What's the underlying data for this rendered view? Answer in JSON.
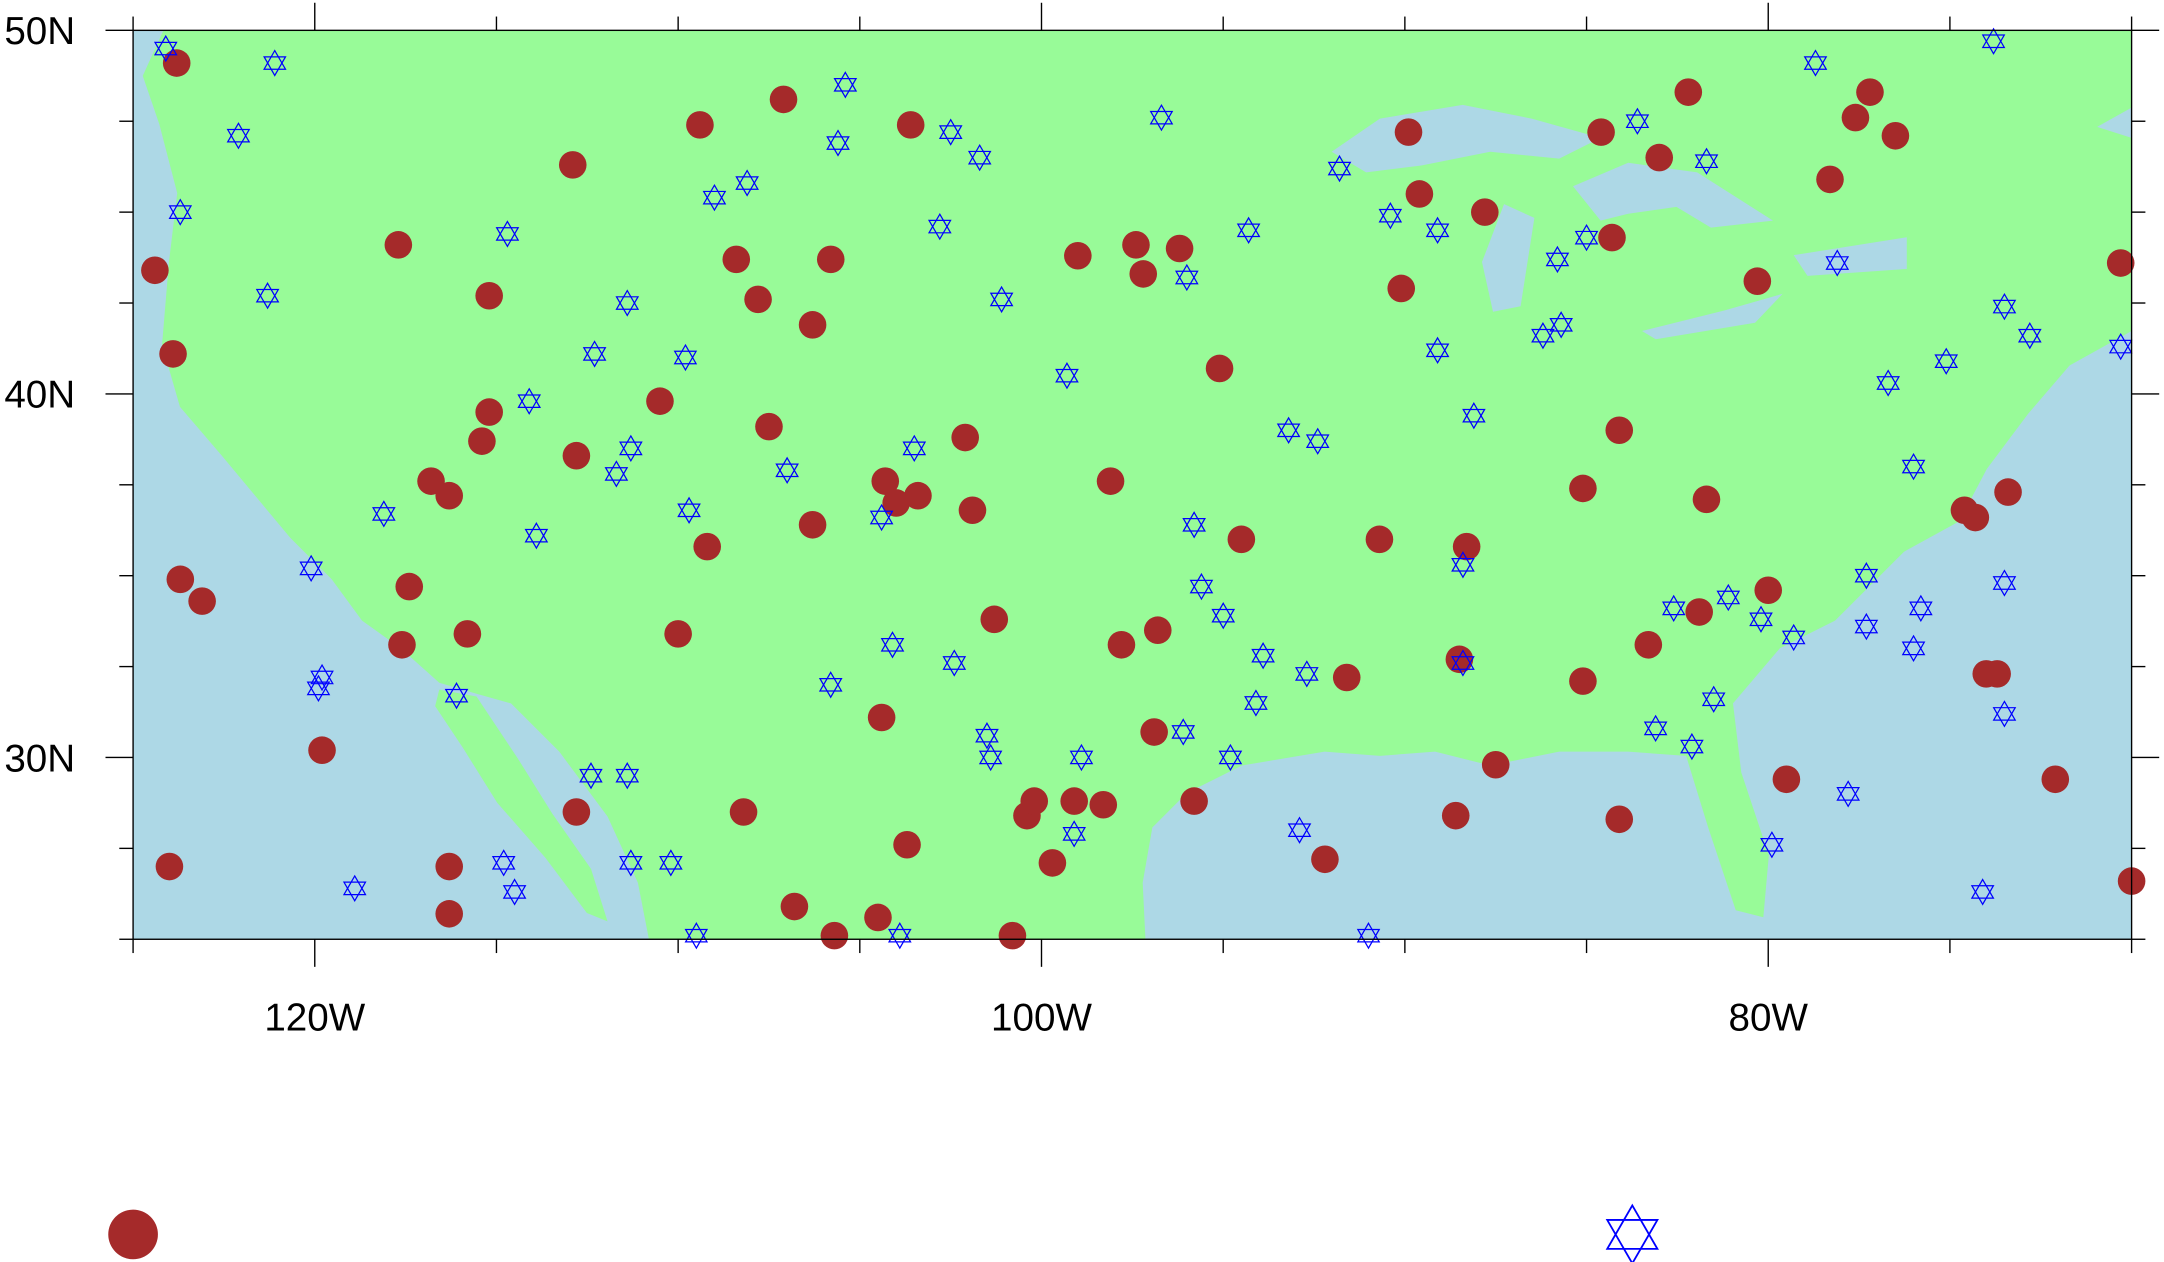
{
  "chart_data": {
    "type": "scatter",
    "projection": "cylindrical-equidistant",
    "xlim": [
      -125,
      -70
    ],
    "ylim": [
      25,
      50
    ],
    "x_ticks": [
      {
        "value": -120,
        "label": "120W"
      },
      {
        "value": -100,
        "label": "100W"
      },
      {
        "value": -80,
        "label": "80W"
      }
    ],
    "y_ticks": [
      {
        "value": 30,
        "label": "30N"
      },
      {
        "value": 40,
        "label": "40N"
      },
      {
        "value": 50,
        "label": "50N"
      }
    ],
    "colors": {
      "ocean": "#ADD8E6",
      "land": "#98FB98",
      "circle": "#A52A2A",
      "star": "#0000FF"
    },
    "series": [
      {
        "marker": "filled-circle",
        "color": "#A52A2A",
        "points": [
          [
            -123.8,
            49.1
          ],
          [
            -124.4,
            43.4
          ],
          [
            -123.9,
            41.1
          ],
          [
            -123.7,
            34.9
          ],
          [
            -123.1,
            34.3
          ],
          [
            -124.0,
            27.0
          ],
          [
            -119.8,
            30.2
          ],
          [
            -117.7,
            44.1
          ],
          [
            -115.2,
            42.7
          ],
          [
            -115.2,
            39.5
          ],
          [
            -115.4,
            38.7
          ],
          [
            -116.8,
            37.6
          ],
          [
            -116.3,
            37.2
          ],
          [
            -117.4,
            34.7
          ],
          [
            -117.6,
            33.1
          ],
          [
            -115.8,
            33.4
          ],
          [
            -116.3,
            27.0
          ],
          [
            -116.3,
            25.7
          ],
          [
            -112.9,
            46.3
          ],
          [
            -112.8,
            38.3
          ],
          [
            -112.8,
            28.5
          ],
          [
            -109.4,
            47.4
          ],
          [
            -110.5,
            39.8
          ],
          [
            -110.0,
            33.4
          ],
          [
            -109.2,
            35.8
          ],
          [
            -108.4,
            43.7
          ],
          [
            -107.8,
            42.6
          ],
          [
            -107.1,
            48.1
          ],
          [
            -107.5,
            39.1
          ],
          [
            -106.3,
            41.9
          ],
          [
            -105.8,
            43.7
          ],
          [
            -106.3,
            36.4
          ],
          [
            -108.2,
            28.5
          ],
          [
            -106.8,
            25.9
          ],
          [
            -105.7,
            25.1
          ],
          [
            -104.4,
            31.1
          ],
          [
            -104.3,
            37.6
          ],
          [
            -104.0,
            37.0
          ],
          [
            -103.4,
            37.2
          ],
          [
            -103.6,
            47.4
          ],
          [
            -102.1,
            38.8
          ],
          [
            -101.9,
            36.8
          ],
          [
            -101.3,
            33.8
          ],
          [
            -103.7,
            27.6
          ],
          [
            -104.5,
            25.6
          ],
          [
            -100.8,
            25.1
          ],
          [
            -100.4,
            28.4
          ],
          [
            -100.2,
            28.8
          ],
          [
            -99.7,
            27.1
          ],
          [
            -99.1,
            28.8
          ],
          [
            -98.3,
            28.7
          ],
          [
            -99.0,
            43.8
          ],
          [
            -97.4,
            44.1
          ],
          [
            -97.2,
            43.3
          ],
          [
            -96.2,
            44.0
          ],
          [
            -98.1,
            37.6
          ],
          [
            -97.8,
            33.1
          ],
          [
            -96.8,
            33.5
          ],
          [
            -96.9,
            30.7
          ],
          [
            -95.8,
            28.8
          ],
          [
            -95.1,
            40.7
          ],
          [
            -94.5,
            36.0
          ],
          [
            -91.6,
            32.2
          ],
          [
            -92.2,
            27.2
          ],
          [
            -90.7,
            36.0
          ],
          [
            -90.1,
            42.9
          ],
          [
            -89.9,
            47.2
          ],
          [
            -89.6,
            45.5
          ],
          [
            -87.8,
            45.0
          ],
          [
            -88.3,
            35.8
          ],
          [
            -88.5,
            32.7
          ],
          [
            -88.6,
            28.4
          ],
          [
            -87.5,
            29.8
          ],
          [
            -84.6,
            47.2
          ],
          [
            -84.3,
            44.3
          ],
          [
            -84.1,
            39.0
          ],
          [
            -85.1,
            37.4
          ],
          [
            -83.0,
            46.5
          ],
          [
            -82.2,
            48.3
          ],
          [
            -81.7,
            37.1
          ],
          [
            -81.9,
            34.0
          ],
          [
            -83.3,
            33.1
          ],
          [
            -85.1,
            32.1
          ],
          [
            -84.1,
            28.3
          ],
          [
            -80.3,
            43.1
          ],
          [
            -80.0,
            34.6
          ],
          [
            -79.5,
            29.4
          ],
          [
            -78.3,
            45.9
          ],
          [
            -77.6,
            47.6
          ],
          [
            -77.2,
            48.3
          ],
          [
            -76.5,
            47.1
          ],
          [
            -74.6,
            36.8
          ],
          [
            -74.3,
            36.6
          ],
          [
            -73.4,
            37.3
          ],
          [
            -74.0,
            32.3
          ],
          [
            -73.7,
            32.3
          ],
          [
            -72.1,
            29.4
          ],
          [
            -70.3,
            43.6
          ],
          [
            -70.0,
            26.6
          ]
        ]
      },
      {
        "marker": "hexagram",
        "color": "#0000FF",
        "points": [
          [
            -124.1,
            49.5
          ],
          [
            -121.1,
            49.1
          ],
          [
            -122.1,
            47.1
          ],
          [
            -123.7,
            45.0
          ],
          [
            -121.3,
            42.7
          ],
          [
            -120.1,
            35.2
          ],
          [
            -119.8,
            32.2
          ],
          [
            -119.9,
            31.9
          ],
          [
            -118.9,
            26.4
          ],
          [
            -118.1,
            36.7
          ],
          [
            -116.1,
            31.7
          ],
          [
            -114.7,
            44.4
          ],
          [
            -114.1,
            39.8
          ],
          [
            -113.9,
            36.1
          ],
          [
            -114.8,
            27.1
          ],
          [
            -114.5,
            26.3
          ],
          [
            -112.4,
            29.5
          ],
          [
            -111.4,
            29.5
          ],
          [
            -111.3,
            27.1
          ],
          [
            -110.2,
            27.1
          ],
          [
            -112.3,
            41.1
          ],
          [
            -111.4,
            42.5
          ],
          [
            -111.3,
            38.5
          ],
          [
            -111.7,
            37.8
          ],
          [
            -109.7,
            36.8
          ],
          [
            -109.8,
            41.0
          ],
          [
            -109.0,
            45.4
          ],
          [
            -108.1,
            45.8
          ],
          [
            -107.0,
            37.9
          ],
          [
            -105.4,
            48.5
          ],
          [
            -105.6,
            46.9
          ],
          [
            -105.8,
            32.0
          ],
          [
            -104.1,
            33.1
          ],
          [
            -104.4,
            36.6
          ],
          [
            -103.5,
            38.5
          ],
          [
            -103.9,
            25.1
          ],
          [
            -109.5,
            25.1
          ],
          [
            -102.5,
            47.2
          ],
          [
            -101.7,
            46.5
          ],
          [
            -102.8,
            44.6
          ],
          [
            -102.4,
            32.6
          ],
          [
            -101.1,
            42.6
          ],
          [
            -101.5,
            30.6
          ],
          [
            -101.4,
            30.0
          ],
          [
            -98.9,
            30.0
          ],
          [
            -99.1,
            27.9
          ],
          [
            -99.3,
            40.5
          ],
          [
            -96.7,
            47.6
          ],
          [
            -96.0,
            43.2
          ],
          [
            -95.8,
            36.4
          ],
          [
            -95.6,
            34.7
          ],
          [
            -96.1,
            30.7
          ],
          [
            -95.0,
            33.9
          ],
          [
            -94.8,
            30.0
          ],
          [
            -94.3,
            44.5
          ],
          [
            -93.9,
            32.8
          ],
          [
            -94.1,
            31.5
          ],
          [
            -92.7,
            32.3
          ],
          [
            -92.9,
            28.0
          ],
          [
            -93.2,
            39.0
          ],
          [
            -92.4,
            38.7
          ],
          [
            -91.8,
            46.2
          ],
          [
            -91.0,
            25.1
          ],
          [
            -90.4,
            44.9
          ],
          [
            -89.1,
            44.5
          ],
          [
            -89.1,
            41.2
          ],
          [
            -88.1,
            39.4
          ],
          [
            -88.4,
            35.3
          ],
          [
            -88.4,
            32.6
          ],
          [
            -86.2,
            41.6
          ],
          [
            -85.7,
            41.9
          ],
          [
            -85.8,
            43.7
          ],
          [
            -85.0,
            44.3
          ],
          [
            -83.6,
            47.5
          ],
          [
            -81.7,
            46.4
          ],
          [
            -78.1,
            43.6
          ],
          [
            -78.7,
            49.1
          ],
          [
            -76.7,
            40.3
          ],
          [
            -75.1,
            40.9
          ],
          [
            -76.0,
            38.0
          ],
          [
            -77.3,
            35.0
          ],
          [
            -75.8,
            34.1
          ],
          [
            -76.0,
            33.0
          ],
          [
            -77.3,
            33.6
          ],
          [
            -81.1,
            34.4
          ],
          [
            -82.6,
            34.1
          ],
          [
            -80.2,
            33.8
          ],
          [
            -79.3,
            33.3
          ],
          [
            -81.5,
            31.6
          ],
          [
            -82.1,
            30.3
          ],
          [
            -83.1,
            30.8
          ],
          [
            -77.8,
            29.0
          ],
          [
            -79.9,
            27.6
          ],
          [
            -74.1,
            26.3
          ],
          [
            -73.5,
            31.2
          ],
          [
            -73.5,
            34.8
          ],
          [
            -73.5,
            42.4
          ],
          [
            -72.8,
            41.6
          ],
          [
            -70.3,
            41.3
          ],
          [
            -73.8,
            49.7
          ]
        ]
      }
    ],
    "legend": {
      "placement": "bottom",
      "entries": [
        {
          "marker": "filled-circle",
          "color": "#A52A2A"
        },
        {
          "marker": "hexagram",
          "color": "#0000FF"
        }
      ]
    },
    "grid": false
  }
}
